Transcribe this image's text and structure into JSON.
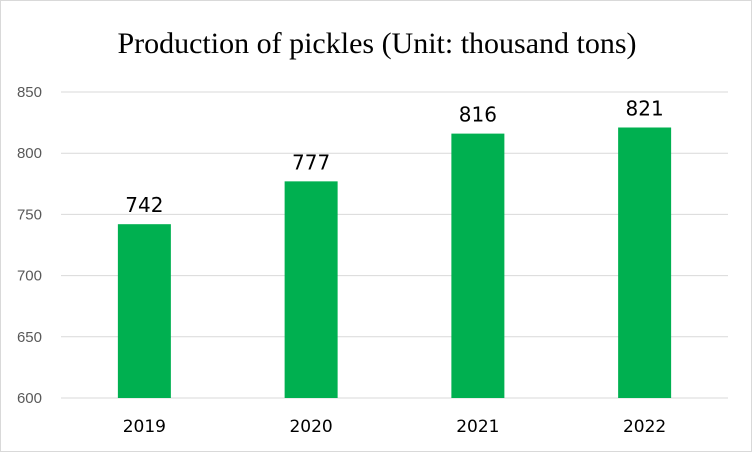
{
  "chart_data": {
    "type": "bar",
    "title": "Production of pickles (Unit: thousand tons)",
    "xlabel": "",
    "ylabel": "",
    "categories": [
      "2019",
      "2020",
      "2021",
      "2022"
    ],
    "values": [
      742,
      777,
      816,
      821
    ],
    "ylim": [
      600,
      850
    ],
    "yticks": [
      600,
      650,
      700,
      750,
      800,
      850
    ],
    "grid": true,
    "legend": "none",
    "data_labels": true,
    "bar_color": "#00b050",
    "grid_color": "#d9d9d9"
  }
}
